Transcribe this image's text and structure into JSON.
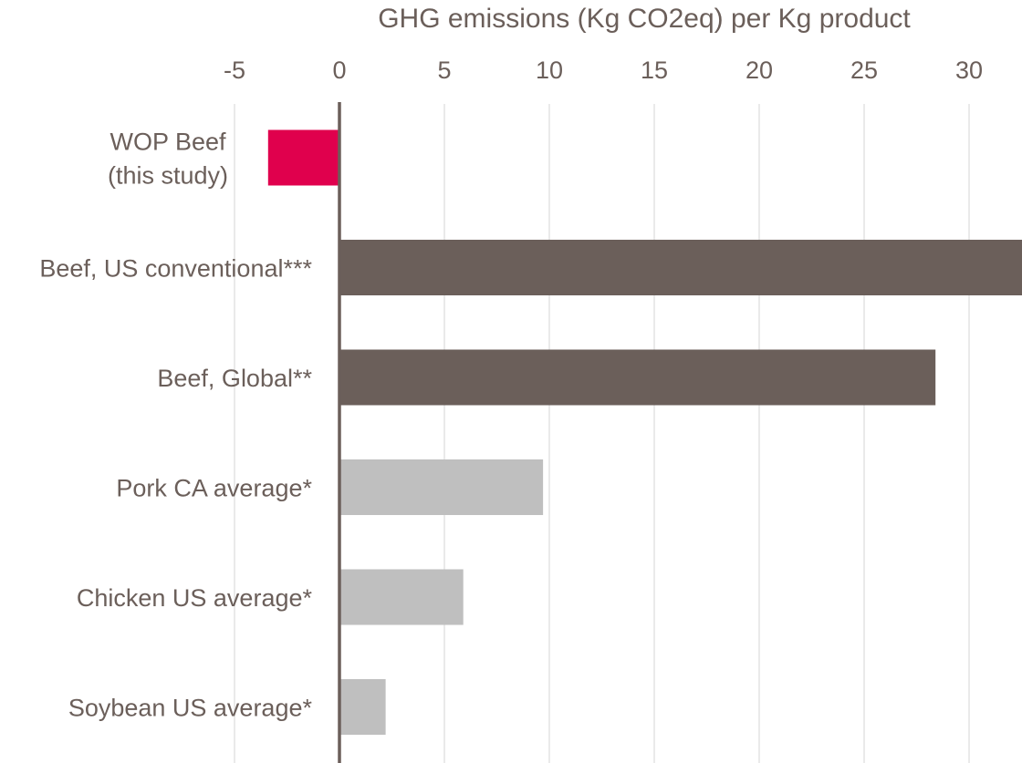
{
  "chart_data": {
    "type": "bar",
    "orientation": "horizontal",
    "xlabel": "GHG emissions (Kg CO2eq) per Kg product",
    "ylabel": "",
    "xlim": [
      -5,
      32.5
    ],
    "x_ticks": [
      -5,
      0,
      5,
      10,
      15,
      20,
      25,
      30
    ],
    "x_axis_position": "top",
    "grid": "vertical",
    "legend": "none",
    "categories": [
      "WOP Beef (this study)",
      "Beef, US conventional***",
      "Beef, Global**",
      "Pork CA average*",
      "Chicken US average*",
      "Soybean US average*"
    ],
    "category_lines": [
      [
        "WOP Beef",
        "(this study)"
      ],
      [
        "Beef, US conventional***"
      ],
      [
        "Beef, Global**"
      ],
      [
        "Pork CA average*"
      ],
      [
        "Chicken US average*"
      ],
      [
        "Soybean US average*"
      ]
    ],
    "values": [
      -3.4,
      33.0,
      28.4,
      9.7,
      5.9,
      2.2
    ],
    "bar_colors": [
      "#e0004d",
      "#6b5f5a",
      "#6b5f5a",
      "#bfbfbf",
      "#bfbfbf",
      "#bfbfbf"
    ],
    "colors": {
      "text": "#6b5f5a",
      "grid": "#e3e3e3",
      "zero_line": "#6b5f5a"
    }
  }
}
